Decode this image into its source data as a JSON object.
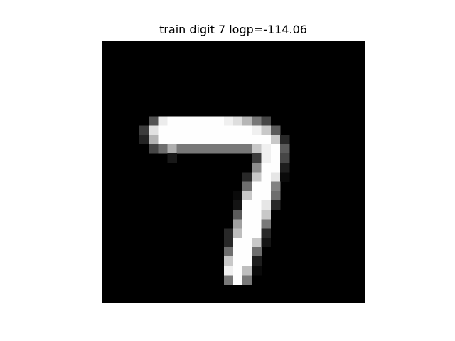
{
  "figure": {
    "title": "train digit 7 logp=-114.06"
  },
  "image": {
    "subject": "handwritten digit",
    "grid_size": 28,
    "background_color": "#000000",
    "pixels": [
      [
        0,
        0,
        0,
        0,
        0,
        0,
        0,
        0,
        0,
        0,
        0,
        0,
        0,
        0,
        0,
        0,
        0,
        0,
        0,
        0,
        0,
        0,
        0,
        0,
        0,
        0,
        0,
        0
      ],
      [
        0,
        0,
        0,
        0,
        0,
        0,
        0,
        0,
        0,
        0,
        0,
        0,
        0,
        0,
        0,
        0,
        0,
        0,
        0,
        0,
        0,
        0,
        0,
        0,
        0,
        0,
        0,
        0
      ],
      [
        0,
        0,
        0,
        0,
        0,
        0,
        0,
        0,
        0,
        0,
        0,
        0,
        0,
        0,
        0,
        0,
        0,
        0,
        0,
        0,
        0,
        0,
        0,
        0,
        0,
        0,
        0,
        0
      ],
      [
        0,
        0,
        0,
        0,
        0,
        0,
        0,
        0,
        0,
        0,
        0,
        0,
        0,
        0,
        0,
        0,
        0,
        0,
        0,
        0,
        0,
        0,
        0,
        0,
        0,
        0,
        0,
        0
      ],
      [
        0,
        0,
        0,
        0,
        0,
        0,
        0,
        0,
        0,
        0,
        0,
        0,
        0,
        0,
        0,
        0,
        0,
        0,
        0,
        0,
        0,
        0,
        0,
        0,
        0,
        0,
        0,
        0
      ],
      [
        0,
        0,
        0,
        0,
        0,
        0,
        0,
        0,
        0,
        0,
        0,
        0,
        0,
        0,
        0,
        0,
        0,
        0,
        0,
        0,
        0,
        0,
        0,
        0,
        0,
        0,
        0,
        0
      ],
      [
        0,
        0,
        0,
        0,
        0,
        0,
        0,
        0,
        0,
        0,
        0,
        0,
        0,
        0,
        0,
        0,
        0,
        0,
        0,
        0,
        0,
        0,
        0,
        0,
        0,
        0,
        0,
        0
      ],
      [
        0,
        0,
        0,
        0,
        0,
        0,
        0,
        0,
        0,
        0,
        0,
        0,
        0,
        0,
        0,
        0,
        0,
        0,
        0,
        0,
        0,
        0,
        0,
        0,
        0,
        0,
        0,
        0
      ],
      [
        0,
        0,
        0,
        0,
        0,
        84,
        236,
        254,
        254,
        254,
        254,
        254,
        254,
        240,
        222,
        182,
        120,
        70,
        0,
        0,
        0,
        0,
        0,
        0,
        0,
        0,
        0,
        0
      ],
      [
        0,
        0,
        0,
        0,
        60,
        225,
        254,
        254,
        254,
        254,
        254,
        254,
        254,
        254,
        254,
        254,
        240,
        200,
        90,
        0,
        0,
        0,
        0,
        0,
        0,
        0,
        0,
        0
      ],
      [
        0,
        0,
        0,
        0,
        36,
        180,
        254,
        254,
        254,
        254,
        254,
        254,
        254,
        254,
        254,
        254,
        254,
        254,
        200,
        40,
        0,
        0,
        0,
        0,
        0,
        0,
        0,
        0
      ],
      [
        0,
        0,
        0,
        0,
        0,
        70,
        110,
        175,
        120,
        120,
        120,
        120,
        120,
        120,
        120,
        120,
        200,
        240,
        254,
        90,
        0,
        0,
        0,
        0,
        0,
        0,
        0,
        0
      ],
      [
        0,
        0,
        0,
        0,
        0,
        0,
        0,
        24,
        0,
        0,
        0,
        0,
        0,
        0,
        0,
        0,
        60,
        240,
        254,
        70,
        0,
        0,
        0,
        0,
        0,
        0,
        0,
        0
      ],
      [
        0,
        0,
        0,
        0,
        0,
        0,
        0,
        0,
        0,
        0,
        0,
        0,
        0,
        0,
        0,
        0,
        140,
        254,
        254,
        30,
        0,
        0,
        0,
        0,
        0,
        0,
        0,
        0
      ],
      [
        0,
        0,
        0,
        0,
        0,
        0,
        0,
        0,
        0,
        0,
        0,
        0,
        0,
        0,
        0,
        40,
        200,
        254,
        230,
        10,
        0,
        0,
        0,
        0,
        0,
        0,
        0,
        0
      ],
      [
        0,
        0,
        0,
        0,
        0,
        0,
        0,
        0,
        0,
        0,
        0,
        0,
        0,
        0,
        0,
        110,
        254,
        254,
        130,
        0,
        0,
        0,
        0,
        0,
        0,
        0,
        0,
        0
      ],
      [
        0,
        0,
        0,
        0,
        0,
        0,
        0,
        0,
        0,
        0,
        0,
        0,
        0,
        0,
        10,
        200,
        254,
        254,
        110,
        0,
        0,
        0,
        0,
        0,
        0,
        0,
        0,
        0
      ],
      [
        0,
        0,
        0,
        0,
        0,
        0,
        0,
        0,
        0,
        0,
        0,
        0,
        0,
        0,
        20,
        254,
        254,
        230,
        40,
        0,
        0,
        0,
        0,
        0,
        0,
        0,
        0,
        0
      ],
      [
        0,
        0,
        0,
        0,
        0,
        0,
        0,
        0,
        0,
        0,
        0,
        0,
        0,
        0,
        90,
        254,
        254,
        200,
        0,
        0,
        0,
        0,
        0,
        0,
        0,
        0,
        0,
        0
      ],
      [
        0,
        0,
        0,
        0,
        0,
        0,
        0,
        0,
        0,
        0,
        0,
        0,
        0,
        0,
        160,
        254,
        254,
        120,
        0,
        0,
        0,
        0,
        0,
        0,
        0,
        0,
        0,
        0
      ],
      [
        0,
        0,
        0,
        0,
        0,
        0,
        0,
        0,
        0,
        0,
        0,
        0,
        0,
        40,
        190,
        254,
        254,
        40,
        0,
        0,
        0,
        0,
        0,
        0,
        0,
        0,
        0,
        0
      ],
      [
        0,
        0,
        0,
        0,
        0,
        0,
        0,
        0,
        0,
        0,
        0,
        0,
        0,
        40,
        254,
        254,
        200,
        20,
        0,
        0,
        0,
        0,
        0,
        0,
        0,
        0,
        0,
        0
      ],
      [
        0,
        0,
        0,
        0,
        0,
        0,
        0,
        0,
        0,
        0,
        0,
        0,
        0,
        110,
        254,
        254,
        110,
        0,
        0,
        0,
        0,
        0,
        0,
        0,
        0,
        0,
        0,
        0
      ],
      [
        0,
        0,
        0,
        0,
        0,
        0,
        0,
        0,
        0,
        0,
        0,
        0,
        0,
        200,
        254,
        254,
        30,
        0,
        0,
        0,
        0,
        0,
        0,
        0,
        0,
        0,
        0,
        0
      ],
      [
        0,
        0,
        0,
        0,
        0,
        0,
        0,
        0,
        0,
        0,
        0,
        0,
        0,
        240,
        254,
        190,
        10,
        0,
        0,
        0,
        0,
        0,
        0,
        0,
        0,
        0,
        0,
        0
      ],
      [
        0,
        0,
        0,
        0,
        0,
        0,
        0,
        0,
        0,
        0,
        0,
        0,
        0,
        120,
        254,
        120,
        0,
        0,
        0,
        0,
        0,
        0,
        0,
        0,
        0,
        0,
        0,
        0
      ],
      [
        0,
        0,
        0,
        0,
        0,
        0,
        0,
        0,
        0,
        0,
        0,
        0,
        0,
        0,
        0,
        0,
        0,
        0,
        0,
        0,
        0,
        0,
        0,
        0,
        0,
        0,
        0,
        0
      ],
      [
        0,
        0,
        0,
        0,
        0,
        0,
        0,
        0,
        0,
        0,
        0,
        0,
        0,
        0,
        0,
        0,
        0,
        0,
        0,
        0,
        0,
        0,
        0,
        0,
        0,
        0,
        0,
        0
      ]
    ]
  }
}
